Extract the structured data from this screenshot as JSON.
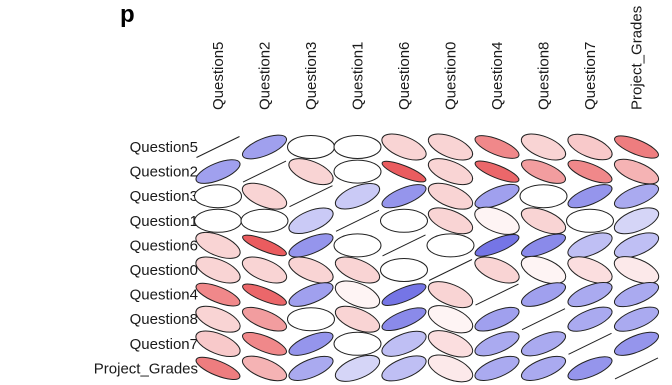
{
  "chart_data": {
    "type": "heatmap",
    "title_fragment": "p",
    "variables": [
      "Question5",
      "Question2",
      "Question3",
      "Question1",
      "Question6",
      "Question0",
      "Question4",
      "Question8",
      "Question7",
      "Project_Grades"
    ],
    "column_labels": [
      "Question5",
      "Question2",
      "Question3",
      "Question1",
      "Question6",
      "Question0",
      "Question4",
      "Question8",
      "Question7",
      "Project_Grades"
    ],
    "matrix": [
      [
        1.0,
        0.45,
        0.0,
        0.0,
        -0.2,
        -0.2,
        -0.55,
        -0.2,
        -0.25,
        -0.6
      ],
      [
        0.45,
        1.0,
        -0.2,
        0.0,
        -0.75,
        -0.2,
        -0.7,
        -0.45,
        -0.55,
        -0.35
      ],
      [
        0.0,
        -0.2,
        1.0,
        0.25,
        0.5,
        -0.2,
        0.45,
        0.0,
        0.5,
        0.4
      ],
      [
        0.0,
        0.0,
        0.25,
        1.0,
        0.0,
        -0.2,
        -0.05,
        -0.2,
        0.0,
        0.2
      ],
      [
        -0.2,
        -0.75,
        0.5,
        0.0,
        1.0,
        0.0,
        0.65,
        0.55,
        0.3,
        0.3
      ],
      [
        -0.2,
        -0.2,
        -0.2,
        -0.2,
        0.0,
        1.0,
        -0.2,
        -0.05,
        -0.15,
        -0.1
      ],
      [
        -0.55,
        -0.7,
        0.45,
        -0.05,
        0.65,
        -0.2,
        1.0,
        0.45,
        0.4,
        0.4
      ],
      [
        -0.2,
        -0.45,
        0.0,
        -0.2,
        0.55,
        -0.05,
        0.45,
        1.0,
        0.4,
        0.4
      ],
      [
        -0.25,
        -0.55,
        0.5,
        0.0,
        0.3,
        -0.15,
        0.4,
        0.4,
        1.0,
        0.5
      ],
      [
        -0.6,
        -0.35,
        0.4,
        0.2,
        0.3,
        -0.1,
        0.4,
        0.4,
        0.5,
        1.0
      ]
    ],
    "colors": {
      "positive": "#2b2bd9",
      "negative": "#e3262a",
      "neutral": "#ffffff",
      "outline": "#222222"
    }
  }
}
